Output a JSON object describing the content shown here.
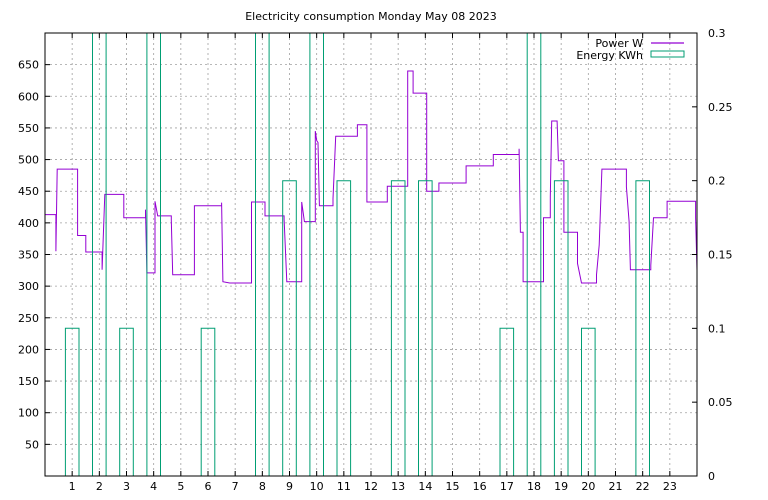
{
  "chart_data": {
    "type": "line",
    "title": "Electricity consumption Monday May 08 2023",
    "legend_position": "top-right",
    "grid": true,
    "x": {
      "range": [
        0,
        24
      ],
      "tick_labels": [
        "1",
        "2",
        "3",
        "4",
        "5",
        "6",
        "7",
        "8",
        "9",
        "10",
        "11",
        "12",
        "13",
        "14",
        "15",
        "16",
        "17",
        "18",
        "19",
        "20",
        "21",
        "22",
        "23"
      ]
    },
    "y_left": {
      "range": [
        0,
        700
      ],
      "tick_labels": [
        "50",
        "100",
        "150",
        "200",
        "250",
        "300",
        "350",
        "400",
        "450",
        "500",
        "550",
        "600",
        "650"
      ]
    },
    "y_right": {
      "range": [
        0,
        0.3
      ],
      "tick_labels": [
        "0",
        "0.05",
        "0.1",
        "0.15",
        "0.2",
        "0.25",
        "0.3"
      ]
    },
    "series": [
      {
        "name": "Power W",
        "axis": "left",
        "color": "#9400d3",
        "step_points": [
          [
            0.0,
            413
          ],
          [
            0.4,
            413
          ],
          [
            0.4,
            355
          ],
          [
            0.45,
            485
          ],
          [
            1.2,
            485
          ],
          [
            1.2,
            380
          ],
          [
            1.5,
            380
          ],
          [
            1.5,
            354
          ],
          [
            2.1,
            354
          ],
          [
            2.1,
            326
          ],
          [
            2.2,
            445
          ],
          [
            2.9,
            445
          ],
          [
            2.9,
            408
          ],
          [
            3.7,
            408
          ],
          [
            3.7,
            421
          ],
          [
            3.75,
            321
          ],
          [
            4.05,
            321
          ],
          [
            4.05,
            434
          ],
          [
            4.15,
            411
          ],
          [
            4.65,
            411
          ],
          [
            4.65,
            404
          ],
          [
            4.7,
            318
          ],
          [
            5.5,
            318
          ],
          [
            5.5,
            427
          ],
          [
            6.5,
            427
          ],
          [
            6.5,
            432
          ],
          [
            6.55,
            307
          ],
          [
            6.8,
            305
          ],
          [
            7.6,
            305
          ],
          [
            7.6,
            433
          ],
          [
            8.1,
            433
          ],
          [
            8.1,
            411
          ],
          [
            8.8,
            411
          ],
          [
            8.8,
            406
          ],
          [
            8.9,
            307
          ],
          [
            9.45,
            307
          ],
          [
            9.45,
            433
          ],
          [
            9.55,
            402
          ],
          [
            9.95,
            402
          ],
          [
            9.95,
            545
          ],
          [
            10.0,
            530
          ],
          [
            10.05,
            527
          ],
          [
            10.1,
            427
          ],
          [
            10.6,
            427
          ],
          [
            10.6,
            438
          ],
          [
            10.7,
            537
          ],
          [
            11.5,
            537
          ],
          [
            11.5,
            555
          ],
          [
            11.85,
            555
          ],
          [
            11.85,
            433
          ],
          [
            12.6,
            433
          ],
          [
            12.6,
            458
          ],
          [
            13.35,
            458
          ],
          [
            13.35,
            640
          ],
          [
            13.55,
            640
          ],
          [
            13.55,
            605
          ],
          [
            14.05,
            605
          ],
          [
            14.05,
            450
          ],
          [
            14.5,
            450
          ],
          [
            14.5,
            463
          ],
          [
            15.5,
            463
          ],
          [
            15.5,
            490
          ],
          [
            16.5,
            490
          ],
          [
            16.5,
            508
          ],
          [
            17.45,
            508
          ],
          [
            17.45,
            517
          ],
          [
            17.5,
            385
          ],
          [
            17.6,
            385
          ],
          [
            17.6,
            307
          ],
          [
            18.35,
            307
          ],
          [
            18.35,
            408
          ],
          [
            18.6,
            408
          ],
          [
            18.6,
            441
          ],
          [
            18.65,
            561
          ],
          [
            18.85,
            561
          ],
          [
            18.9,
            498
          ],
          [
            19.1,
            498
          ],
          [
            19.1,
            385
          ],
          [
            19.6,
            385
          ],
          [
            19.6,
            336
          ],
          [
            19.75,
            305
          ],
          [
            20.3,
            305
          ],
          [
            20.3,
            318
          ],
          [
            20.4,
            365
          ],
          [
            20.5,
            485
          ],
          [
            21.4,
            485
          ],
          [
            21.4,
            457
          ],
          [
            21.5,
            402
          ],
          [
            21.55,
            326
          ],
          [
            22.3,
            326
          ],
          [
            22.3,
            333
          ],
          [
            22.4,
            408
          ],
          [
            22.9,
            408
          ],
          [
            22.9,
            434
          ],
          [
            23.95,
            434
          ],
          [
            23.95,
            408
          ],
          [
            24.0,
            325
          ]
        ]
      },
      {
        "name": "Energy KWh",
        "axis": "right",
        "color": "#009e73",
        "step_points": [
          [
            0.0,
            0
          ],
          [
            0.75,
            0
          ],
          [
            0.75,
            0.1
          ],
          [
            1.25,
            0.1
          ],
          [
            1.25,
            0
          ],
          [
            1.75,
            0
          ],
          [
            1.75,
            0.3
          ],
          [
            2.25,
            0.3
          ],
          [
            2.25,
            0
          ],
          [
            2.75,
            0
          ],
          [
            2.75,
            0.1
          ],
          [
            3.25,
            0.1
          ],
          [
            3.25,
            0
          ],
          [
            3.75,
            0
          ],
          [
            3.75,
            0.3
          ],
          [
            4.25,
            0.3
          ],
          [
            4.25,
            0
          ],
          [
            5.75,
            0
          ],
          [
            5.75,
            0.1
          ],
          [
            6.25,
            0.1
          ],
          [
            6.25,
            0
          ],
          [
            7.75,
            0
          ],
          [
            7.75,
            0.3
          ],
          [
            8.25,
            0.3
          ],
          [
            8.25,
            0
          ],
          [
            8.75,
            0
          ],
          [
            8.75,
            0.2
          ],
          [
            9.25,
            0.2
          ],
          [
            9.25,
            0
          ],
          [
            9.75,
            0
          ],
          [
            9.75,
            0.3
          ],
          [
            10.25,
            0.3
          ],
          [
            10.25,
            0
          ],
          [
            10.75,
            0
          ],
          [
            10.75,
            0.2
          ],
          [
            11.25,
            0.2
          ],
          [
            11.25,
            0
          ],
          [
            12.75,
            0
          ],
          [
            12.75,
            0.2
          ],
          [
            13.25,
            0.2
          ],
          [
            13.25,
            0
          ],
          [
            13.75,
            0
          ],
          [
            13.75,
            0.2
          ],
          [
            14.25,
            0.2
          ],
          [
            14.25,
            0
          ],
          [
            16.75,
            0
          ],
          [
            16.75,
            0.1
          ],
          [
            17.25,
            0.1
          ],
          [
            17.25,
            0
          ],
          [
            17.75,
            0
          ],
          [
            17.75,
            0.3
          ],
          [
            18.25,
            0.3
          ],
          [
            18.25,
            0
          ],
          [
            18.75,
            0
          ],
          [
            18.75,
            0.2
          ],
          [
            19.25,
            0.2
          ],
          [
            19.25,
            0
          ],
          [
            19.75,
            0
          ],
          [
            19.75,
            0.1
          ],
          [
            20.25,
            0.1
          ],
          [
            20.25,
            0
          ],
          [
            21.75,
            0
          ],
          [
            21.75,
            0.2
          ],
          [
            22.25,
            0.2
          ],
          [
            22.25,
            0
          ],
          [
            24.0,
            0
          ]
        ]
      }
    ]
  }
}
